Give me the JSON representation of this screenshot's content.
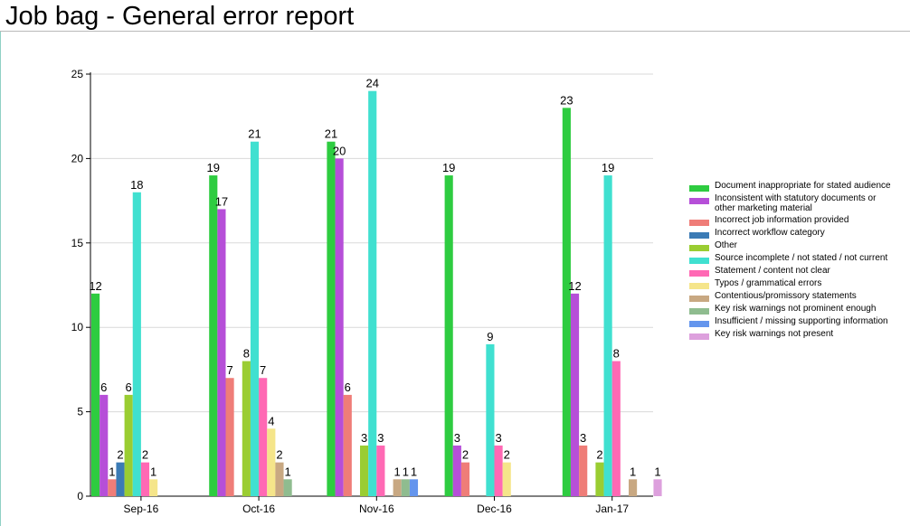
{
  "page": {
    "title": "Job bag - General error report"
  },
  "chart_data": {
    "type": "bar",
    "title": "",
    "xlabel": "",
    "ylabel": "",
    "ylim": [
      0,
      25
    ],
    "yticks": [
      0,
      5,
      10,
      15,
      20,
      25
    ],
    "grid": true,
    "legend_position": "right",
    "categories": [
      "Sep-16",
      "Oct-16",
      "Nov-16",
      "Dec-16",
      "Jan-17"
    ],
    "series": [
      {
        "name": "Document inappropriate for stated audience",
        "color": "#2ecc40",
        "values": [
          12,
          19,
          21,
          19,
          23
        ]
      },
      {
        "name": "Inconsistent with statutory documents or other marketing material",
        "color": "#b64fd8",
        "values": [
          6,
          17,
          20,
          3,
          12
        ]
      },
      {
        "name": "Incorrect job information provided",
        "color": "#ef7d78",
        "values": [
          1,
          7,
          6,
          2,
          3
        ]
      },
      {
        "name": "Incorrect workflow category",
        "color": "#3b7bb5",
        "values": [
          2,
          0,
          0,
          0,
          0
        ]
      },
      {
        "name": "Other",
        "color": "#9acd32",
        "values": [
          6,
          8,
          3,
          0,
          2
        ]
      },
      {
        "name": "Source incomplete / not stated / not current",
        "color": "#40e0d0",
        "values": [
          18,
          21,
          24,
          9,
          19
        ]
      },
      {
        "name": "Statement / content not clear",
        "color": "#ff69b4",
        "values": [
          2,
          7,
          3,
          3,
          8
        ]
      },
      {
        "name": "Typos / grammatical errors",
        "color": "#f5e58a",
        "values": [
          1,
          4,
          0,
          2,
          0
        ]
      },
      {
        "name": "Contentious/promissory statements",
        "color": "#c8a882",
        "values": [
          0,
          2,
          1,
          0,
          1
        ]
      },
      {
        "name": "Key risk warnings not prominent enough",
        "color": "#8fbc8f",
        "values": [
          0,
          1,
          1,
          0,
          0
        ]
      },
      {
        "name": "Insufficient / missing supporting information",
        "color": "#6495ed",
        "values": [
          0,
          0,
          1,
          0,
          0
        ]
      },
      {
        "name": "Key risk warnings not present",
        "color": "#dda0dd",
        "values": [
          0,
          0,
          0,
          0,
          1
        ]
      }
    ]
  }
}
